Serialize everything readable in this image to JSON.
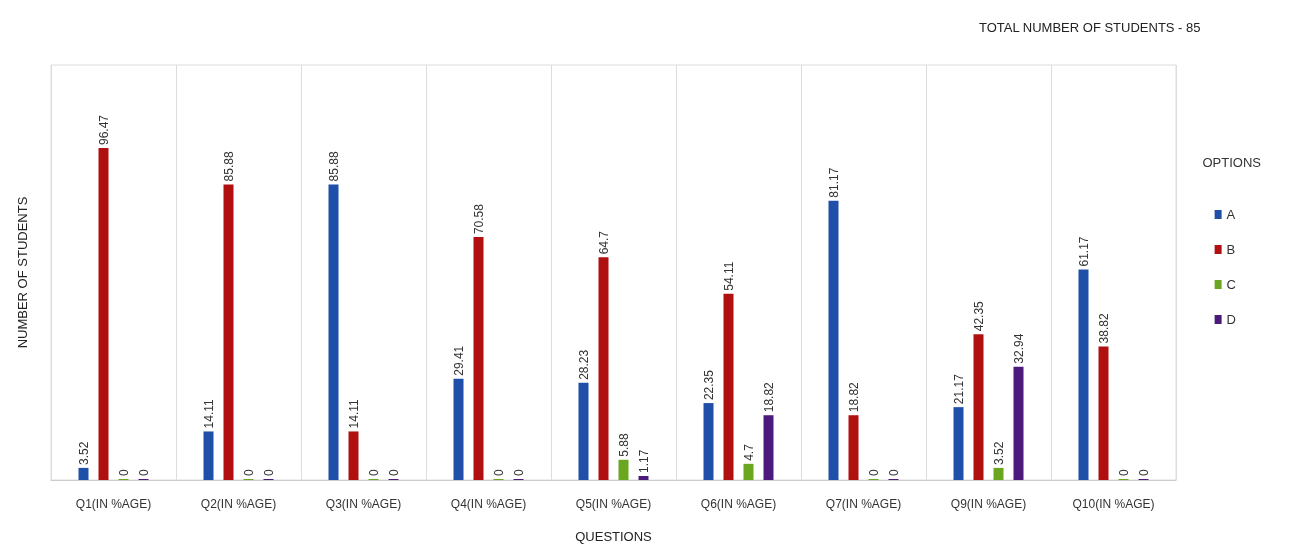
{
  "chart_data": {
    "type": "bar",
    "title": "TOTAL NUMBER OF STUDENTS - 85",
    "xlabel": "QUESTIONS",
    "ylabel": "NUMBER OF STUDENTS",
    "legend_title": "OPTIONS",
    "legend": "right",
    "grid": "x",
    "data_labels": true,
    "categories": [
      "Q1(IN %AGE)",
      "Q2(IN %AGE)",
      "Q3(IN %AGE)",
      "Q4(IN %AGE)",
      "Q5(IN %AGE)",
      "Q6(IN %AGE)",
      "Q7(IN %AGE)",
      "Q9(IN %AGE)",
      "Q10(IN %AGE)"
    ],
    "series": [
      {
        "name": "A",
        "color": "#1f4fa8",
        "values": [
          3.52,
          14.11,
          85.88,
          29.41,
          28.23,
          22.35,
          81.17,
          21.17,
          61.17
        ]
      },
      {
        "name": "B",
        "color": "#b01010",
        "values": [
          96.47,
          85.88,
          14.11,
          70.58,
          64.7,
          54.11,
          18.82,
          42.35,
          38.82
        ]
      },
      {
        "name": "C",
        "color": "#6aa620",
        "values": [
          0,
          0,
          0,
          0,
          5.88,
          4.7,
          0,
          3.52,
          0
        ]
      },
      {
        "name": "D",
        "color": "#4b1a7a",
        "values": [
          0,
          0,
          0,
          0,
          1.17,
          18.82,
          0,
          32.94,
          0
        ]
      }
    ]
  }
}
